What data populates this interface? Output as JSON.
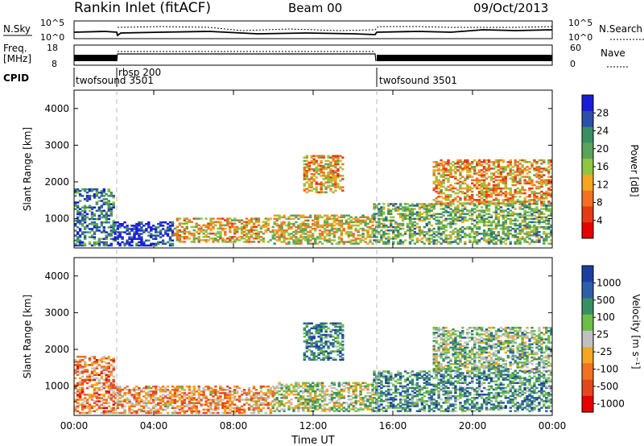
{
  "header": {
    "title": "Rankin Inlet (fitACF)",
    "beam": "Beam 00",
    "date": "09/Oct/2013"
  },
  "noise_panel": {
    "left_label": "N.Sky",
    "left_ticks": [
      "10^5",
      "10^0"
    ],
    "right_label": "N.Search",
    "right_ticks": [
      "10^5",
      "10^0"
    ]
  },
  "freq_panel": {
    "left_label_line1": "Freq.",
    "left_label_line2": "[MHz]",
    "left_ticks": [
      "18",
      "8"
    ],
    "right_label": "Nave",
    "right_ticks": [
      "60",
      "0"
    ]
  },
  "cpid_panel": {
    "label": "CPID",
    "segments": [
      {
        "name": "twofsound 3501",
        "start_hour": 0,
        "end_hour": 2
      },
      {
        "name": "rbsp 200",
        "start_hour": 2,
        "end_hour": 15
      },
      {
        "name": "twofsound 3501",
        "start_hour": 15,
        "end_hour": 24
      }
    ]
  },
  "colors": {
    "power_scale": [
      "#1a1adb",
      "#2c4fa8",
      "#3a8f62",
      "#5aa35a",
      "#8ec63f",
      "#f5a51e",
      "#f37020",
      "#e63a14",
      "#e60000"
    ],
    "velocity_scale": [
      "#1a3fa0",
      "#2c5fa8",
      "#3a8f62",
      "#6bbf46",
      "#c0c0c0",
      "#f5a51e",
      "#f37020",
      "#e6461e",
      "#e60000"
    ]
  },
  "chart_data": [
    {
      "type": "heatmap",
      "panel": "power",
      "ylabel": "Slant Range [km]",
      "yticks": [
        1000,
        2000,
        3000,
        4000
      ],
      "ylim": [
        200,
        4500
      ],
      "xlim": [
        0,
        24
      ],
      "xticks": [
        0,
        4,
        8,
        12,
        16,
        20,
        24
      ],
      "colorbar": {
        "label": "Power [dB]",
        "ticks": [
          "28",
          "24",
          "20",
          "16",
          "12",
          "8",
          "4"
        ],
        "range": [
          0,
          30
        ]
      },
      "echo_regions": [
        {
          "t0": 0.0,
          "t1": 2.0,
          "r0": 250,
          "r1": 1800,
          "level": 0.75
        },
        {
          "t0": 2.0,
          "t1": 5.0,
          "r0": 250,
          "r1": 900,
          "level": 0.9
        },
        {
          "t0": 5.0,
          "t1": 10.0,
          "r0": 350,
          "r1": 1000,
          "level": 0.4
        },
        {
          "t0": 10.0,
          "t1": 15.0,
          "r0": 300,
          "r1": 1100,
          "level": 0.45
        },
        {
          "t0": 11.5,
          "t1": 13.5,
          "r0": 1700,
          "r1": 2700,
          "level": 0.35
        },
        {
          "t0": 15.0,
          "t1": 24.0,
          "r0": 300,
          "r1": 1400,
          "level": 0.6
        },
        {
          "t0": 18.0,
          "t1": 24.0,
          "r0": 1400,
          "r1": 2600,
          "level": 0.35
        }
      ]
    },
    {
      "type": "heatmap",
      "panel": "velocity",
      "ylabel": "Slant Range [km]",
      "xlabel": "Time UT",
      "yticks": [
        1000,
        2000,
        3000,
        4000
      ],
      "ylim": [
        200,
        4500
      ],
      "xlim": [
        0,
        24
      ],
      "xticks": [
        0,
        4,
        8,
        12,
        16,
        20,
        24
      ],
      "xticklabels": [
        "00:00",
        "04:00",
        "08:00",
        "12:00",
        "16:00",
        "20:00",
        "00:00"
      ],
      "colorbar": {
        "label": "Velocity [m s⁻¹]",
        "ticks": [
          "1000",
          "500",
          "100",
          "25",
          "-25",
          "-100",
          "-500",
          "-1000"
        ]
      },
      "echo_regions": [
        {
          "t0": 0.0,
          "t1": 2.0,
          "r0": 250,
          "r1": 1800,
          "level": 0.3
        },
        {
          "t0": 2.0,
          "t1": 10.0,
          "r0": 250,
          "r1": 1000,
          "level": 0.35
        },
        {
          "t0": 10.0,
          "t1": 15.0,
          "r0": 300,
          "r1": 1100,
          "level": 0.55
        },
        {
          "t0": 11.5,
          "t1": 13.5,
          "r0": 1700,
          "r1": 2700,
          "level": 0.75
        },
        {
          "t0": 15.0,
          "t1": 24.0,
          "r0": 300,
          "r1": 1400,
          "level": 0.72
        },
        {
          "t0": 18.0,
          "t1": 24.0,
          "r0": 1400,
          "r1": 2600,
          "level": 0.6
        }
      ]
    }
  ]
}
